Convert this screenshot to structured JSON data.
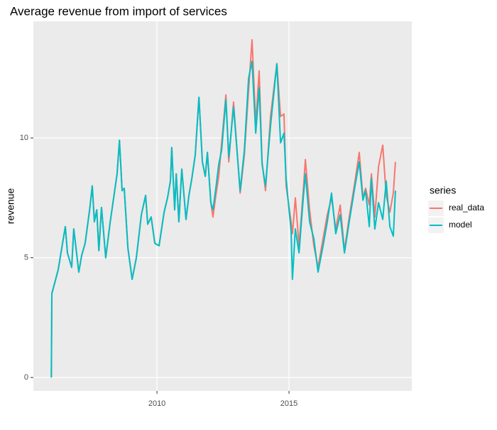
{
  "chart_data": {
    "type": "line",
    "title": "Average revenue from import of services",
    "y_label": "revenue",
    "legend_title": "series",
    "legend_position": "right",
    "grid": true,
    "x": [
      2006.0,
      2006.02,
      2006.26,
      2006.53,
      2006.61,
      2006.77,
      2006.85,
      2007.04,
      2007.15,
      2007.28,
      2007.45,
      2007.55,
      2007.63,
      2007.72,
      2007.8,
      2007.9,
      2008.06,
      2008.23,
      2008.49,
      2008.58,
      2008.68,
      2008.76,
      2008.9,
      2009.06,
      2009.22,
      2009.41,
      2009.57,
      2009.65,
      2009.78,
      2009.92,
      2010.08,
      2010.27,
      2010.4,
      2010.51,
      2010.56,
      2010.67,
      2010.73,
      2010.83,
      2010.94,
      2011.1,
      2011.21,
      2011.32,
      2011.45,
      2011.59,
      2011.72,
      2011.83,
      2011.91,
      2012.04,
      2012.12,
      2012.23,
      2012.34,
      2012.45,
      2012.61,
      2012.72,
      2012.9,
      2013.15,
      2013.31,
      2013.47,
      2013.6,
      2013.74,
      2013.87,
      2013.98,
      2014.11,
      2014.3,
      2014.54,
      2014.68,
      2014.81,
      2014.89,
      2015.08,
      2015.13,
      2015.24,
      2015.38,
      2015.54,
      2015.62,
      2015.78,
      2015.94,
      2016.1,
      2016.29,
      2016.45,
      2016.61,
      2016.77,
      2016.94,
      2017.1,
      2017.28,
      2017.5,
      2017.66,
      2017.8,
      2017.9,
      2018.04,
      2018.12,
      2018.25,
      2018.39,
      2018.55,
      2018.68,
      2018.82,
      2018.95,
      2019.03
    ],
    "series": [
      {
        "name": "real_data",
        "color": "#F8766D",
        "values": [
          0,
          3.5,
          4.5,
          6.3,
          5.2,
          4.6,
          6.2,
          4.4,
          5.1,
          5.6,
          7.0,
          8.0,
          6.5,
          7.0,
          5.3,
          7.1,
          5.0,
          6.5,
          8.5,
          9.9,
          7.8,
          7.9,
          5.4,
          4.1,
          5.0,
          6.8,
          7.6,
          6.4,
          6.7,
          5.6,
          5.5,
          6.9,
          7.5,
          8.2,
          9.6,
          7.0,
          8.5,
          6.5,
          8.7,
          6.6,
          7.6,
          8.3,
          9.3,
          11.7,
          9.0,
          8.4,
          9.4,
          7.3,
          6.7,
          7.6,
          8.4,
          9.8,
          11.8,
          9.0,
          11.5,
          7.7,
          9.3,
          12.0,
          14.1,
          10.6,
          12.8,
          9.0,
          7.8,
          10.9,
          13.1,
          10.9,
          11.0,
          8.0,
          6.5,
          6.0,
          7.5,
          5.5,
          7.8,
          9.1,
          7.0,
          5.5,
          4.6,
          5.8,
          6.8,
          7.5,
          6.2,
          7.2,
          5.3,
          6.7,
          8.2,
          9.4,
          7.5,
          7.9,
          7.2,
          8.5,
          6.7,
          8.8,
          9.7,
          7.6,
          6.9,
          7.7,
          9.0
        ]
      },
      {
        "name": "model",
        "color": "#00BFC4",
        "values": [
          0,
          3.5,
          4.5,
          6.3,
          5.2,
          4.6,
          6.2,
          4.4,
          5.1,
          5.6,
          7.0,
          8.0,
          6.5,
          7.0,
          5.3,
          7.1,
          5.0,
          6.5,
          8.5,
          9.9,
          7.8,
          7.9,
          5.4,
          4.1,
          5.0,
          6.8,
          7.6,
          6.4,
          6.7,
          5.6,
          5.5,
          6.9,
          7.5,
          8.2,
          9.6,
          7.0,
          8.5,
          6.5,
          8.7,
          6.6,
          7.6,
          8.3,
          9.3,
          11.7,
          9.0,
          8.4,
          9.4,
          7.3,
          7.0,
          7.9,
          8.9,
          9.5,
          11.6,
          9.2,
          11.3,
          7.8,
          9.5,
          12.5,
          13.2,
          10.2,
          12.1,
          8.9,
          8.0,
          10.5,
          13.1,
          9.8,
          10.2,
          8.3,
          6.1,
          4.1,
          6.2,
          5.2,
          7.5,
          8.5,
          6.5,
          5.8,
          4.4,
          5.5,
          6.5,
          7.7,
          6.0,
          6.8,
          5.2,
          6.5,
          8.0,
          9.0,
          7.4,
          7.8,
          6.3,
          8.3,
          6.2,
          7.3,
          6.6,
          8.2,
          6.3,
          5.9,
          7.8
        ]
      }
    ],
    "xlim": [
      2005.32,
      2019.65
    ],
    "xticks": [
      2010,
      2015
    ],
    "ylim": [
      -0.56,
      14.87
    ],
    "yticks": [
      0,
      5,
      10
    ]
  }
}
